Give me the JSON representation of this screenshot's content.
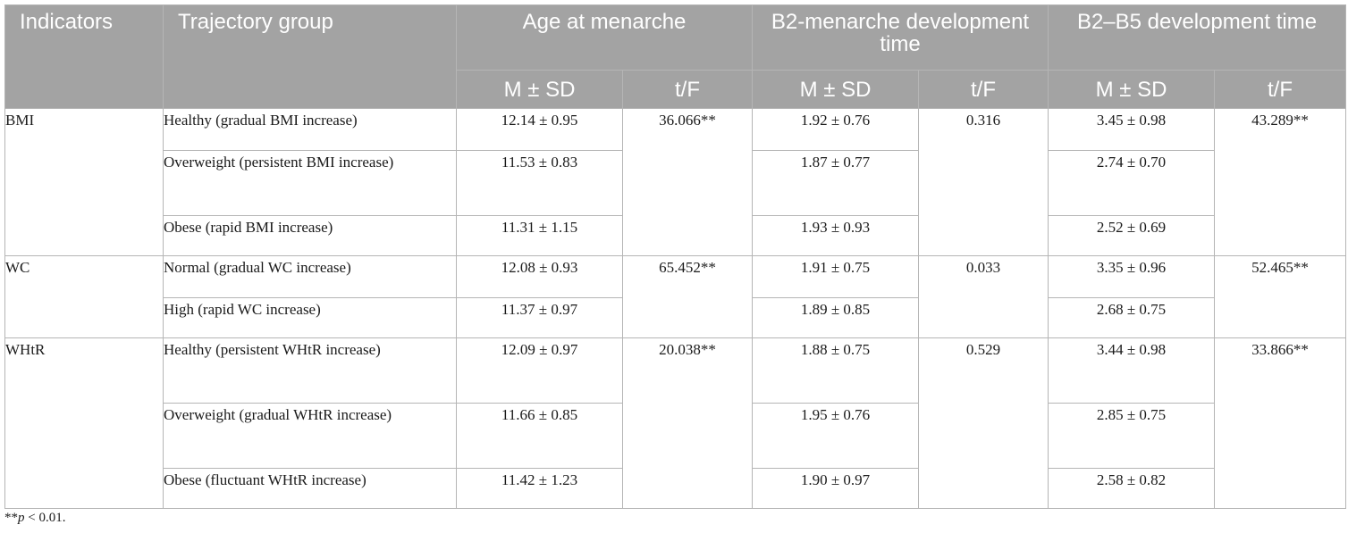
{
  "headers": {
    "indicators": "Indicators",
    "trajectory_group": "Trajectory group",
    "age_at_menarche": "Age at menarche",
    "b2_menarche": "B2-menarche development time",
    "b2_b5": "B2–B5 development time",
    "mean_sd": "M ± SD",
    "tf": "t/F"
  },
  "sections": [
    {
      "indicator": "BMI",
      "tf_age": "36.066**",
      "tf_b2m": "0.316",
      "tf_b2b5": "43.289**",
      "rows": [
        {
          "group": "Healthy (gradual BMI increase)",
          "age": "12.14 ± 0.95",
          "b2m": "1.92 ± 0.76",
          "b2b5": "3.45 ± 0.98"
        },
        {
          "group": "Overweight (persistent BMI increase)",
          "age": "11.53 ± 0.83",
          "b2m": "1.87 ± 0.77",
          "b2b5": "2.74 ± 0.70"
        },
        {
          "group": "Obese (rapid BMI increase)",
          "age": "11.31 ± 1.15",
          "b2m": "1.93 ± 0.93",
          "b2b5": "2.52 ± 0.69"
        }
      ]
    },
    {
      "indicator": "WC",
      "tf_age": "65.452**",
      "tf_b2m": "0.033",
      "tf_b2b5": "52.465**",
      "rows": [
        {
          "group": "Normal (gradual WC increase)",
          "age": "12.08 ± 0.93",
          "b2m": "1.91 ± 0.75",
          "b2b5": "3.35 ± 0.96"
        },
        {
          "group": "High (rapid WC increase)",
          "age": "11.37 ± 0.97",
          "b2m": "1.89 ± 0.85",
          "b2b5": "2.68 ± 0.75"
        }
      ]
    },
    {
      "indicator": "WHtR",
      "tf_age": "20.038**",
      "tf_b2m": "0.529",
      "tf_b2b5": "33.866**",
      "rows": [
        {
          "group": "Healthy (persistent WHtR increase)",
          "age": "12.09 ± 0.97",
          "b2m": "1.88 ± 0.75",
          "b2b5": "3.44 ± 0.98"
        },
        {
          "group": "Overweight (gradual WHtR increase)",
          "age": "11.66 ± 0.85",
          "b2m": "1.95 ± 0.76",
          "b2b5": "2.85 ± 0.75"
        },
        {
          "group": "Obese (fluctuant WHtR increase)",
          "age": "11.42 ± 1.23",
          "b2m": "1.90 ± 0.97",
          "b2b5": "2.58 ± 0.82"
        }
      ]
    }
  ],
  "footnote": {
    "marker": "**",
    "p": "p",
    "rest": " < 0.01."
  }
}
